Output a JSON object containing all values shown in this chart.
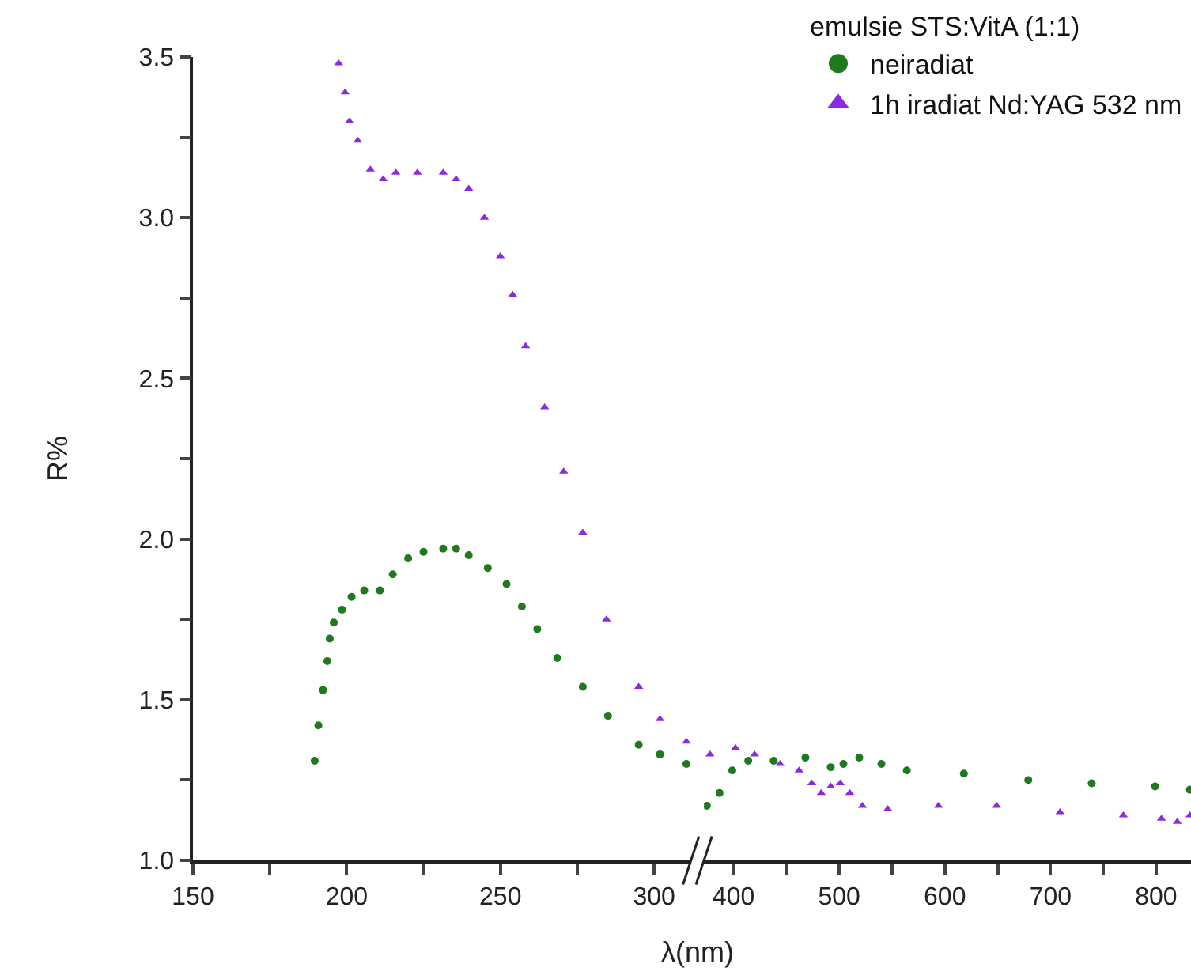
{
  "chart_data": [
    {
      "type": "scatter",
      "xlabel": "λ(nm)",
      "ylabel": "R%",
      "xlim": [
        150,
        312
      ],
      "ylim": [
        1.0,
        3.5
      ],
      "legend": false,
      "xticks": [
        150,
        {
          "value": 175,
          "label": null
        },
        200,
        {
          "value": 225,
          "label": null
        },
        250,
        {
          "value": 275,
          "label": null
        },
        300
      ],
      "yticks": [
        {
          "value": 1.0,
          "label": "1.0"
        },
        {
          "value": 1.25,
          "label": null
        },
        {
          "value": 1.5,
          "label": "1.5"
        },
        {
          "value": 1.75,
          "label": null
        },
        {
          "value": 2.0,
          "label": "2.0"
        },
        {
          "value": 2.25,
          "label": null
        },
        {
          "value": 2.5,
          "label": "2.5"
        },
        {
          "value": 2.75,
          "label": null
        },
        {
          "value": 3.0,
          "label": "3.0"
        },
        {
          "value": 3.25,
          "label": null
        },
        {
          "value": 3.5,
          "label": "3.5"
        }
      ],
      "series": [
        {
          "color": "#1f7a1f",
          "marker": "circle",
          "x": [
            189.6,
            190.8,
            192.3,
            193.7,
            194.5,
            195.8,
            198.5,
            201.6,
            205.7,
            210.8,
            215,
            220,
            225,
            231.4,
            235.6,
            239.7,
            245.9,
            252,
            257,
            262,
            268.5,
            276.8,
            285,
            295,
            301.9,
            310.5
          ],
          "values": [
            1.31,
            1.42,
            1.53,
            1.62,
            1.69,
            1.74,
            1.78,
            1.82,
            1.84,
            1.84,
            1.89,
            1.94,
            1.96,
            1.97,
            1.97,
            1.95,
            1.91,
            1.86,
            1.79,
            1.72,
            1.63,
            1.54,
            1.45,
            1.36,
            1.33,
            1.3
          ]
        },
        {
          "color": "#8a2be2",
          "marker": "triangle",
          "x": [
            197.4,
            199.5,
            200.9,
            203.6,
            207.7,
            211.9,
            216,
            223,
            231.4,
            235.6,
            239.7,
            244.8,
            250,
            254,
            258.2,
            264.4,
            270.6,
            276.8,
            284.5,
            295,
            301.9,
            310.5
          ],
          "values": [
            3.48,
            3.39,
            3.3,
            3.24,
            3.15,
            3.12,
            3.14,
            3.14,
            3.14,
            3.12,
            3.09,
            3.0,
            2.88,
            2.76,
            2.6,
            2.41,
            2.21,
            2.02,
            1.75,
            1.54,
            1.44,
            1.37
          ]
        }
      ]
    },
    {
      "type": "scatter",
      "legend_title": "emulsie STS:VitA (1:1)",
      "xlim": [
        372,
        833
      ],
      "ylim": [
        1.0,
        3.5
      ],
      "tick_labels": "x",
      "legend": "top right",
      "xticks": [
        400,
        {
          "value": 450,
          "label": null
        },
        500,
        {
          "value": 550,
          "label": null
        },
        600,
        {
          "value": 650,
          "label": null
        },
        700,
        {
          "value": 750,
          "label": null
        },
        800
      ],
      "series": [
        {
          "name": "neiradiat",
          "color": "#1f7a1f",
          "marker": "circle",
          "x": [
            374.7,
            386.7,
            398.8,
            413.9,
            438,
            468,
            492,
            504,
            519,
            540,
            564,
            618,
            679,
            739,
            799,
            832
          ],
          "values": [
            1.17,
            1.21,
            1.28,
            1.31,
            1.31,
            1.32,
            1.29,
            1.3,
            1.32,
            1.3,
            1.28,
            1.27,
            1.25,
            1.24,
            1.23,
            1.22
          ]
        },
        {
          "name": "1h iradiat Nd:YAG 532 nm",
          "color": "#8a2be2",
          "marker": "triangle",
          "x": [
            377.7,
            401.8,
            419.9,
            444,
            462,
            474,
            483,
            492,
            501,
            510,
            522,
            546,
            594,
            649,
            709,
            769,
            805,
            820,
            832
          ],
          "values": [
            1.33,
            1.35,
            1.33,
            1.3,
            1.28,
            1.24,
            1.21,
            1.23,
            1.24,
            1.21,
            1.17,
            1.16,
            1.17,
            1.17,
            1.15,
            1.14,
            1.13,
            1.12,
            1.14
          ]
        }
      ]
    }
  ]
}
